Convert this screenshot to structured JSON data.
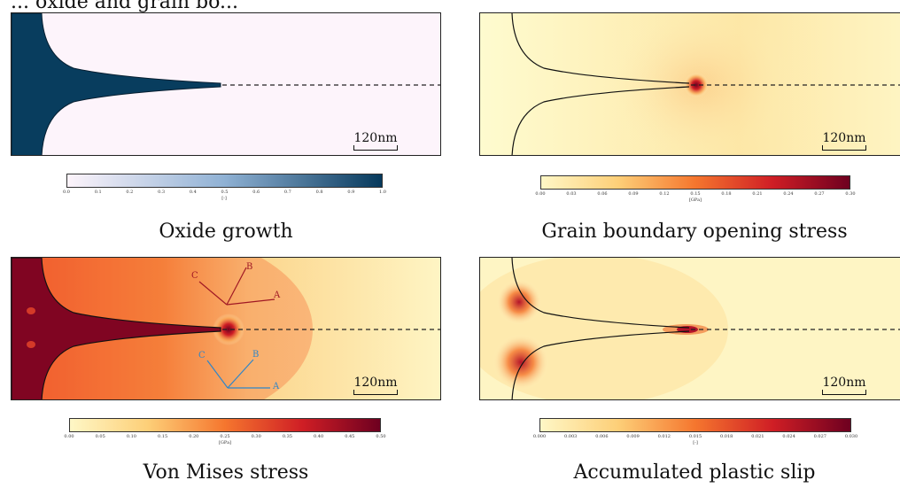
{
  "header_partial": "... oxide and grain bo...",
  "scale_bar_label": "120nm",
  "panels": [
    {
      "caption": "Oxide growth",
      "colorbar": {
        "ticks": [
          "0.0",
          "0.1",
          "0.2",
          "0.3",
          "0.4",
          "0.5",
          "0.6",
          "0.7",
          "0.8",
          "0.9",
          "1.0"
        ],
        "unit": "[-]",
        "from": "#fdf4fb",
        "to": "#06395c"
      }
    },
    {
      "caption": "Grain boundary opening stress",
      "colorbar": {
        "ticks": [
          "0.00",
          "0.03",
          "0.06",
          "0.09",
          "0.12",
          "0.15",
          "0.18",
          "0.21",
          "0.24",
          "0.27",
          "0.30"
        ],
        "unit": "[GPa]",
        "from": "#fef7c6",
        "to": "#6e0020"
      }
    },
    {
      "caption": "Von Mises stress",
      "colorbar": {
        "ticks": [
          "0.00",
          "0.05",
          "0.10",
          "0.15",
          "0.20",
          "0.25",
          "0.30",
          "0.35",
          "0.40",
          "0.45",
          "0.50"
        ],
        "unit": "[GPa]",
        "from": "#fef7c6",
        "to": "#6e0020"
      },
      "axes_red": {
        "labels": [
          "A",
          "B",
          "C"
        ],
        "color": "#a01824"
      },
      "axes_blue": {
        "labels": [
          "A",
          "B",
          "C"
        ],
        "color": "#2f86c8"
      }
    },
    {
      "caption": "Accumulated plastic slip",
      "colorbar": {
        "ticks": [
          "0.000",
          "0.003",
          "0.006",
          "0.009",
          "0.012",
          "0.015",
          "0.018",
          "0.021",
          "0.024",
          "0.027",
          "0.030"
        ],
        "unit": "[-]",
        "from": "#fef7c6",
        "to": "#6e0020"
      }
    }
  ]
}
